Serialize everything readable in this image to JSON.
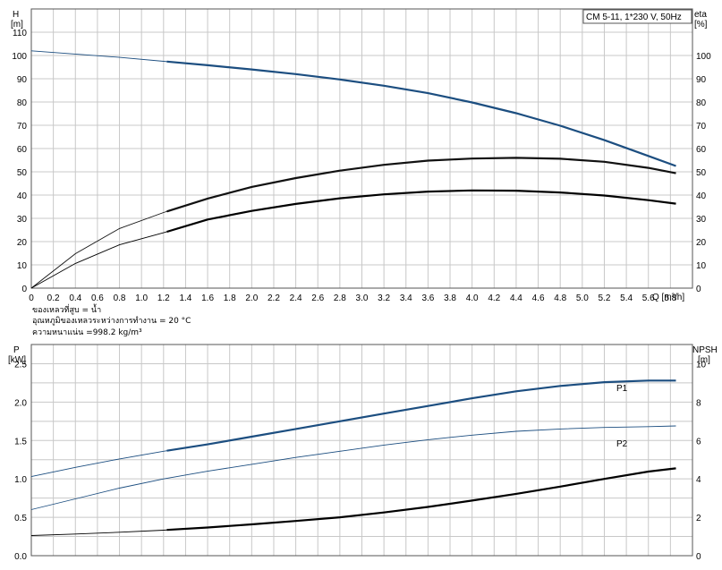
{
  "chart_data": [
    {
      "type": "line",
      "title": "CM 5-11, 1*230 V, 50Hz",
      "ylabel_left": "H",
      "ylabel_left_unit": "[m]",
      "ylabel_right": "eta",
      "ylabel_right_unit": "[%]",
      "xlabel": "Q [m³/h]",
      "xlim": [
        0,
        6.0
      ],
      "ylim_left": [
        0,
        120
      ],
      "ylim_right": [
        0,
        120
      ],
      "grid": true,
      "x_ticks": [
        "0",
        "0.2",
        "0.4",
        "0.6",
        "0.8",
        "1.0",
        "1.2",
        "1.4",
        "1.6",
        "1.8",
        "2.0",
        "2.2",
        "2.4",
        "2.6",
        "2.8",
        "3.0",
        "3.2",
        "3.4",
        "3.6",
        "3.8",
        "4.0",
        "4.2",
        "4.4",
        "4.6",
        "4.8",
        "5.0",
        "5.2",
        "5.4",
        "5.6",
        "5.8"
      ],
      "y_ticks_left": [
        "0",
        "10",
        "20",
        "30",
        "40",
        "50",
        "60",
        "70",
        "80",
        "90",
        "100",
        "110"
      ],
      "y_ticks_right": [
        "0",
        "10",
        "20",
        "30",
        "40",
        "50",
        "60",
        "70",
        "80",
        "90",
        "100"
      ],
      "notes": [
        "ของเหลวที่สูบ = น้ำ",
        "อุณหภูมิของเหลวระหว่างการทำงาน = 20 °C",
        "ความหนาแน่น =998.2 kg/m³"
      ],
      "series": [
        {
          "color": "#1c4e80",
          "axis": "left",
          "x": [
            0,
            0.4,
            0.8,
            1.2,
            1.6,
            2.0,
            2.4,
            2.8,
            3.2,
            3.6,
            4.0,
            4.4,
            4.8,
            5.2,
            5.6,
            5.85
          ],
          "values": [
            102,
            100.6,
            99.2,
            97.5,
            95.8,
            94,
            92,
            89.7,
            87,
            83.8,
            79.8,
            75.2,
            69.8,
            63.6,
            56.8,
            52.5
          ],
          "operating_from": 1.23
        },
        {
          "color": "#111111",
          "axis": "right",
          "x": [
            0,
            0.4,
            0.8,
            1.2,
            1.6,
            2.0,
            2.4,
            2.8,
            3.2,
            3.6,
            4.0,
            4.4,
            4.8,
            5.2,
            5.6,
            5.85
          ],
          "values": [
            0,
            14.8,
            25.6,
            32.5,
            38.5,
            43.5,
            47.3,
            50.5,
            53,
            54.8,
            55.7,
            56,
            55.6,
            54.3,
            51.7,
            49.4
          ],
          "operating_from": 1.23
        },
        {
          "color": "#000000",
          "axis": "right",
          "x": [
            0,
            0.4,
            0.8,
            1.2,
            1.6,
            2.0,
            2.4,
            2.8,
            3.2,
            3.6,
            4.0,
            4.4,
            4.8,
            5.2,
            5.6,
            5.85
          ],
          "values": [
            0,
            10.6,
            18.6,
            23.8,
            29.5,
            33.2,
            36.2,
            38.6,
            40.3,
            41.5,
            42,
            41.9,
            41.1,
            39.8,
            37.8,
            36.3
          ],
          "operating_from": 1.23
        }
      ]
    },
    {
      "type": "line",
      "ylabel_left": "P",
      "ylabel_left_unit": "[kW]",
      "ylabel_right": "NPSH",
      "ylabel_right_unit": "[m]",
      "xlim": [
        0,
        6.0
      ],
      "ylim_left": [
        0,
        2.75
      ],
      "ylim_right": [
        0,
        11
      ],
      "grid": true,
      "y_ticks_left": [
        "0.0",
        "0.5",
        "1.0",
        "1.5",
        "2.0",
        "2.5"
      ],
      "y_ticks_right": [
        "0",
        "2",
        "4",
        "6",
        "8",
        "10"
      ],
      "series": [
        {
          "name": "P1",
          "color": "#1c4e80",
          "axis": "left",
          "x": [
            0,
            0.4,
            0.8,
            1.2,
            1.6,
            2.0,
            2.4,
            2.8,
            3.2,
            3.6,
            4.0,
            4.4,
            4.8,
            5.2,
            5.6,
            5.85
          ],
          "values": [
            1.03,
            1.15,
            1.26,
            1.36,
            1.45,
            1.55,
            1.65,
            1.75,
            1.85,
            1.95,
            2.05,
            2.14,
            2.21,
            2.26,
            2.28,
            2.28
          ],
          "operating_from": 1.23
        },
        {
          "name": "P2",
          "color": "#1c4e80",
          "axis": "left",
          "x": [
            0,
            0.4,
            0.8,
            1.2,
            1.6,
            2.0,
            2.4,
            2.8,
            3.2,
            3.6,
            4.0,
            4.4,
            4.8,
            5.2,
            5.6,
            5.85
          ],
          "values": [
            0.6,
            0.74,
            0.88,
            1.0,
            1.1,
            1.19,
            1.28,
            1.36,
            1.44,
            1.51,
            1.57,
            1.62,
            1.65,
            1.67,
            1.68,
            1.69
          ]
        },
        {
          "color": "#000000",
          "axis": "right",
          "x": [
            0,
            0.4,
            0.8,
            1.2,
            1.6,
            2.0,
            2.4,
            2.8,
            3.2,
            3.6,
            4.0,
            4.4,
            4.8,
            5.2,
            5.6,
            5.85
          ],
          "values": [
            1.05,
            1.13,
            1.22,
            1.33,
            1.47,
            1.63,
            1.81,
            2.0,
            2.25,
            2.54,
            2.87,
            3.22,
            3.6,
            4.0,
            4.38,
            4.55
          ],
          "operating_from": 1.23
        }
      ]
    }
  ]
}
